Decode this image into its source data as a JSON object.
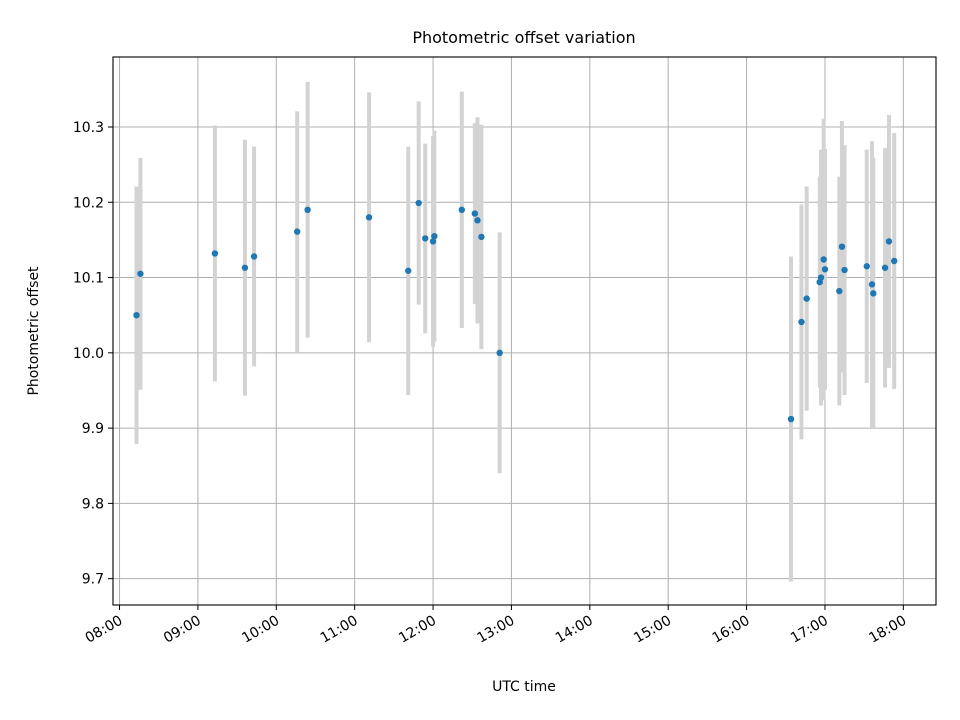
{
  "chart_data": {
    "type": "scatter",
    "title": "Photometric offset variation",
    "xlabel": "UTC time",
    "ylabel": "Photometric offset",
    "x_axis_kind": "time",
    "xlim": [
      "07:55",
      "18:25"
    ],
    "ylim": [
      9.665,
      10.393
    ],
    "grid": true,
    "xticks": [
      "08:00",
      "09:00",
      "10:00",
      "11:00",
      "12:00",
      "13:00",
      "14:00",
      "15:00",
      "16:00",
      "17:00",
      "18:00"
    ],
    "yticks": [
      9.7,
      9.8,
      9.9,
      10.0,
      10.1,
      10.2,
      10.3
    ],
    "ytick_labels": [
      "9.7",
      "9.8",
      "9.9",
      "10.0",
      "10.1",
      "10.2",
      "10.3"
    ],
    "colors": {
      "points": "#1f77b4",
      "errorbars": "#d3d3d3",
      "grid": "#b0b0b0"
    },
    "points": [
      {
        "x": "08:13",
        "y": 10.05,
        "err": 0.171
      },
      {
        "x": "08:16",
        "y": 10.105,
        "err": 0.154
      },
      {
        "x": "09:13",
        "y": 10.132,
        "err": 0.17
      },
      {
        "x": "09:36",
        "y": 10.113,
        "err": 0.17
      },
      {
        "x": "09:43",
        "y": 10.128,
        "err": 0.146
      },
      {
        "x": "10:16",
        "y": 10.161,
        "err": 0.16
      },
      {
        "x": "10:24",
        "y": 10.19,
        "err": 0.17
      },
      {
        "x": "11:11",
        "y": 10.18,
        "err": 0.166
      },
      {
        "x": "11:41",
        "y": 10.109,
        "err": 0.165
      },
      {
        "x": "11:49",
        "y": 10.199,
        "err": 0.135
      },
      {
        "x": "11:54",
        "y": 10.152,
        "err": 0.126
      },
      {
        "x": "12:00",
        "y": 10.148,
        "err": 0.14
      },
      {
        "x": "12:01",
        "y": 10.155,
        "err": 0.14
      },
      {
        "x": "12:22",
        "y": 10.19,
        "err": 0.157
      },
      {
        "x": "12:32",
        "y": 10.185,
        "err": 0.12
      },
      {
        "x": "12:34",
        "y": 10.176,
        "err": 0.137
      },
      {
        "x": "12:37",
        "y": 10.154,
        "err": 0.149
      },
      {
        "x": "12:51",
        "y": 10.0,
        "err": 0.16
      },
      {
        "x": "16:34",
        "y": 9.912,
        "err": 0.216
      },
      {
        "x": "16:42",
        "y": 10.041,
        "err": 0.156
      },
      {
        "x": "16:46",
        "y": 10.072,
        "err": 0.149
      },
      {
        "x": "16:56",
        "y": 10.094,
        "err": 0.14
      },
      {
        "x": "16:57",
        "y": 10.1,
        "err": 0.17
      },
      {
        "x": "16:59",
        "y": 10.124,
        "err": 0.187
      },
      {
        "x": "17:00",
        "y": 10.111,
        "err": 0.16
      },
      {
        "x": "17:11",
        "y": 10.082,
        "err": 0.152
      },
      {
        "x": "17:13",
        "y": 10.141,
        "err": 0.167
      },
      {
        "x": "17:15",
        "y": 10.11,
        "err": 0.166
      },
      {
        "x": "17:32",
        "y": 10.115,
        "err": 0.155
      },
      {
        "x": "17:36",
        "y": 10.091,
        "err": 0.19
      },
      {
        "x": "17:37",
        "y": 10.079,
        "err": 0.18
      },
      {
        "x": "17:46",
        "y": 10.113,
        "err": 0.159
      },
      {
        "x": "17:49",
        "y": 10.148,
        "err": 0.168
      },
      {
        "x": "17:53",
        "y": 10.122,
        "err": 0.17
      }
    ]
  }
}
